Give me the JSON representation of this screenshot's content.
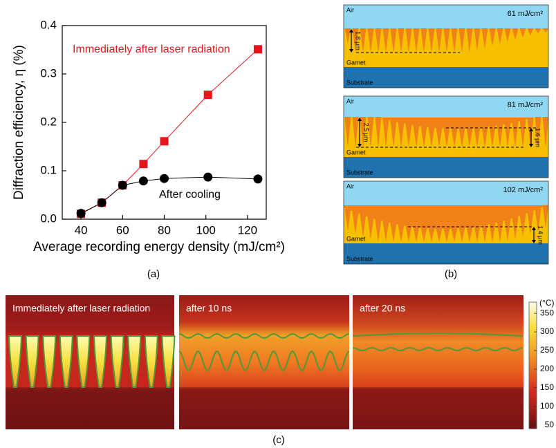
{
  "chart_data": {
    "type": "line",
    "y_label": "Diffraction efficiency, η (%)",
    "x_label": "Average recording energy density (mJ/cm²)",
    "x": [
      40,
      50,
      60,
      70,
      80,
      101,
      125
    ],
    "series": [
      {
        "name": "Immediately after laser radiation",
        "color": "#e8141b",
        "marker": "square",
        "values": [
          0.011,
          0.034,
          0.07,
          0.114,
          0.161,
          0.257,
          0.351
        ]
      },
      {
        "name": "After  cooling",
        "color": "#000000",
        "marker": "circle",
        "values": [
          0.012,
          0.034,
          0.07,
          0.079,
          0.084,
          0.087,
          0.083
        ]
      }
    ],
    "xlim": [
      31,
      129
    ],
    "xticks": [
      40,
      60,
      80,
      100,
      120
    ],
    "ylim": [
      0,
      0.4
    ],
    "yticks": [
      {
        "value": 0,
        "label": "0.0"
      },
      0.1,
      0.2,
      0.3,
      0.4
    ],
    "caption": "(a)"
  },
  "panel_b": {
    "caption": "(b)",
    "panels": [
      {
        "air": "Air",
        "energy": "61 mJ/cm²",
        "film": "Garnet",
        "substrate": "Substrate",
        "depths": [
          "1.8 μm"
        ]
      },
      {
        "air": "Air",
        "energy": "81 mJ/cm²",
        "film": "Garnet",
        "substrate": "Substrate",
        "depths": [
          "2.5 μm",
          "1.6 μm"
        ]
      },
      {
        "air": "Air",
        "energy": "102 mJ/cm²",
        "film": "Garnet",
        "substrate": "Substrate",
        "depths": [
          "1.4 μm"
        ]
      }
    ]
  },
  "panel_c": {
    "caption": "(c)",
    "images": [
      {
        "label": "Immediately after laser radiation"
      },
      {
        "label": "after 10 ns"
      },
      {
        "label": "after 20 ns"
      }
    ],
    "colorbar": {
      "label": "(°C)",
      "lim": [
        40,
        380
      ],
      "ticks": [
        350,
        300,
        250,
        200,
        150,
        100,
        50
      ]
    }
  }
}
